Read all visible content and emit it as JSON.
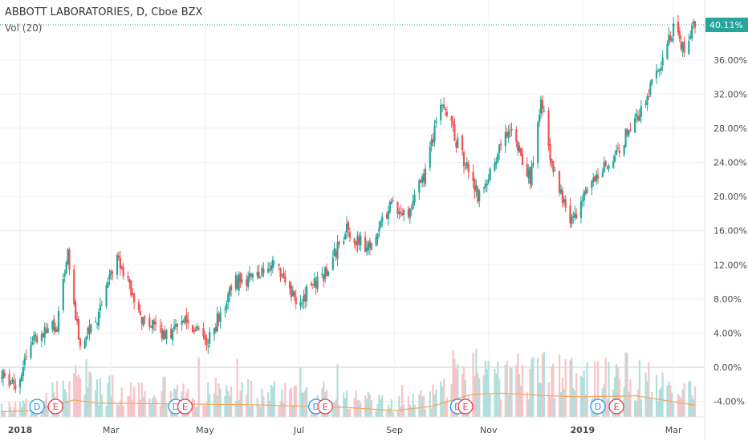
{
  "header": {
    "title": "ABBOTT LABORATORIES, D, Cboe BZX",
    "volume_indicator": "Vol (20)"
  },
  "chart_data": {
    "type": "candlestick",
    "symbol": "ABBOTT LABORATORIES",
    "interval": "D",
    "exchange": "Cboe BZX",
    "y_scale": "percent",
    "ylim": [
      -5.5,
      41.5
    ],
    "y_ticks": [
      -4,
      0,
      4,
      8,
      12,
      16,
      20,
      24,
      28,
      32,
      36
    ],
    "y_tick_labels": [
      "-4.00%",
      "0.00%",
      "4.00%",
      "8.00%",
      "12.00%",
      "16.00%",
      "20.00%",
      "24.00%",
      "28.00%",
      "32.00%",
      "36.00%"
    ],
    "current_value": 40.11,
    "current_value_label": "40.11%",
    "x_axis": {
      "start": "2017-12-20",
      "end": "2019-03-15",
      "ticks": [
        {
          "date": "2018-01-01",
          "label": "2018",
          "bold": true
        },
        {
          "date": "2018-03-01",
          "label": "Mar",
          "bold": false
        },
        {
          "date": "2018-05-01",
          "label": "May",
          "bold": false
        },
        {
          "date": "2018-07-01",
          "label": "Jul",
          "bold": false
        },
        {
          "date": "2018-09-01",
          "label": "Sep",
          "bold": false
        },
        {
          "date": "2018-11-01",
          "label": "Nov",
          "bold": false
        },
        {
          "date": "2019-01-01",
          "label": "2019",
          "bold": true
        },
        {
          "date": "2019-03-01",
          "label": "Mar",
          "bold": false
        }
      ]
    },
    "trend": [
      {
        "date": "2017-12-20",
        "value": -1.0
      },
      {
        "date": "2017-12-29",
        "value": -2.5
      },
      {
        "date": "2018-01-10",
        "value": 3.0
      },
      {
        "date": "2018-01-25",
        "value": 5.0
      },
      {
        "date": "2018-02-01",
        "value": 13.0
      },
      {
        "date": "2018-02-09",
        "value": 2.0
      },
      {
        "date": "2018-02-20",
        "value": 6.0
      },
      {
        "date": "2018-03-05",
        "value": 13.0
      },
      {
        "date": "2018-03-20",
        "value": 6.0
      },
      {
        "date": "2018-04-05",
        "value": 3.5
      },
      {
        "date": "2018-04-20",
        "value": 5.5
      },
      {
        "date": "2018-05-03",
        "value": 3.0
      },
      {
        "date": "2018-05-20",
        "value": 10.0
      },
      {
        "date": "2018-06-05",
        "value": 10.5
      },
      {
        "date": "2018-06-15",
        "value": 12.5
      },
      {
        "date": "2018-06-29",
        "value": 7.5
      },
      {
        "date": "2018-07-18",
        "value": 11.0
      },
      {
        "date": "2018-08-01",
        "value": 16.0
      },
      {
        "date": "2018-08-15",
        "value": 14.0
      },
      {
        "date": "2018-08-30",
        "value": 19.0
      },
      {
        "date": "2018-09-10",
        "value": 18.0
      },
      {
        "date": "2018-09-20",
        "value": 22.5
      },
      {
        "date": "2018-10-02",
        "value": 31.0
      },
      {
        "date": "2018-10-12",
        "value": 26.0
      },
      {
        "date": "2018-10-25",
        "value": 20.0
      },
      {
        "date": "2018-11-05",
        "value": 24.0
      },
      {
        "date": "2018-11-15",
        "value": 28.5
      },
      {
        "date": "2018-11-28",
        "value": 22.0
      },
      {
        "date": "2018-12-05",
        "value": 31.5
      },
      {
        "date": "2018-12-12",
        "value": 24.0
      },
      {
        "date": "2018-12-24",
        "value": 17.0
      },
      {
        "date": "2019-01-08",
        "value": 22.0
      },
      {
        "date": "2019-01-20",
        "value": 24.5
      },
      {
        "date": "2019-02-01",
        "value": 28.0
      },
      {
        "date": "2019-02-15",
        "value": 33.0
      },
      {
        "date": "2019-03-01",
        "value": 39.5
      },
      {
        "date": "2019-03-08",
        "value": 37.5
      },
      {
        "date": "2019-03-15",
        "value": 40.1
      }
    ],
    "volume_ma": [
      {
        "date": "2017-12-20",
        "value": 0.1
      },
      {
        "date": "2018-01-10",
        "value": 0.12
      },
      {
        "date": "2018-02-05",
        "value": 0.32
      },
      {
        "date": "2018-02-20",
        "value": 0.26
      },
      {
        "date": "2018-04-01",
        "value": 0.25
      },
      {
        "date": "2018-06-01",
        "value": 0.23
      },
      {
        "date": "2018-08-01",
        "value": 0.18
      },
      {
        "date": "2018-09-01",
        "value": 0.12
      },
      {
        "date": "2018-09-25",
        "value": 0.2
      },
      {
        "date": "2018-10-20",
        "value": 0.42
      },
      {
        "date": "2018-11-10",
        "value": 0.45
      },
      {
        "date": "2018-12-10",
        "value": 0.4
      },
      {
        "date": "2019-01-01",
        "value": 0.38
      },
      {
        "date": "2019-02-05",
        "value": 0.4
      },
      {
        "date": "2019-03-15",
        "value": 0.22
      }
    ],
    "events": [
      {
        "type": "dividend",
        "label": "D",
        "date": "2018-01-12",
        "color": "#2196f3"
      },
      {
        "type": "earnings",
        "label": "E",
        "date": "2018-01-24",
        "color": "#f23645"
      },
      {
        "type": "dividend",
        "label": "D",
        "date": "2018-04-12",
        "color": "#2196f3"
      },
      {
        "type": "earnings",
        "label": "E",
        "date": "2018-04-18",
        "color": "#f23645"
      },
      {
        "type": "dividend",
        "label": "D",
        "date": "2018-07-12",
        "color": "#2196f3"
      },
      {
        "type": "earnings",
        "label": "E",
        "date": "2018-07-18",
        "color": "#f23645"
      },
      {
        "type": "dividend",
        "label": "D",
        "date": "2018-10-12",
        "color": "#2196f3"
      },
      {
        "type": "earnings",
        "label": "E",
        "date": "2018-10-17",
        "color": "#f23645"
      },
      {
        "type": "dividend",
        "label": "D",
        "date": "2019-01-11",
        "color": "#2196f3"
      },
      {
        "type": "earnings",
        "label": "E",
        "date": "2019-01-23",
        "color": "#f23645"
      }
    ],
    "colors": {
      "up": "#26a69a",
      "down": "#ef5350",
      "volume_up": "#b2dfdb",
      "volume_down": "#f7c4c8",
      "volume_ma": "#f5a55a",
      "price_line": "#26a69a",
      "grid": "#eef0f3"
    },
    "grid": true
  }
}
